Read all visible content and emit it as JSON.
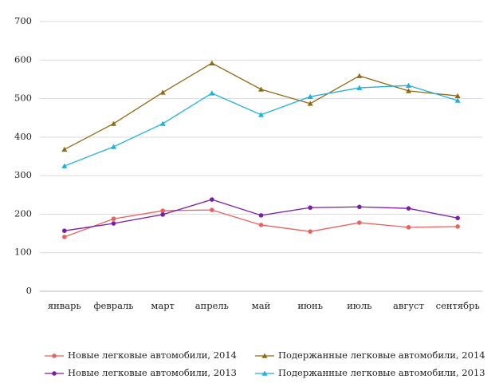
{
  "chart_data": {
    "type": "line",
    "categories": [
      "январь",
      "февраль",
      "март",
      "апрель",
      "май",
      "июнь",
      "июль",
      "август",
      "сентябрь"
    ],
    "series": [
      {
        "name": "Новые легковые автомобили, 2014",
        "color": "#e8625f",
        "marker": "circle",
        "values": [
          141,
          188,
          209,
          211,
          172,
          155,
          178,
          166,
          168
        ]
      },
      {
        "name": "Подержанные легковые автомобили, 2014",
        "color": "#8f6b17",
        "marker": "triangle",
        "values": [
          368,
          435,
          516,
          592,
          524,
          487,
          559,
          520,
          507
        ]
      },
      {
        "name": "Новые легковые автомобили, 2013",
        "color": "#7a1fa2",
        "marker": "circle",
        "values": [
          157,
          176,
          199,
          238,
          197,
          217,
          219,
          215,
          190
        ]
      },
      {
        "name": "Подержанные легковые автомобили, 2013",
        "color": "#1fb0d8",
        "marker": "triangle",
        "values": [
          325,
          375,
          435,
          514,
          458,
          505,
          528,
          534,
          495
        ]
      }
    ],
    "ylim": [
      0,
      700
    ],
    "yticks": [
      0,
      100,
      200,
      300,
      400,
      500,
      600,
      700
    ],
    "grid": true
  }
}
